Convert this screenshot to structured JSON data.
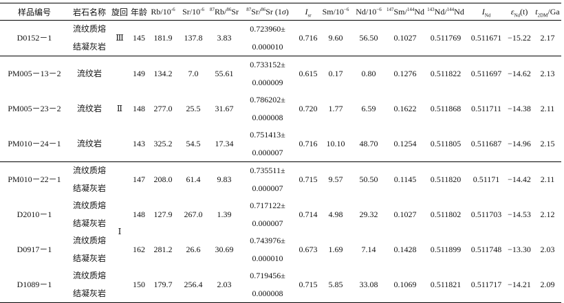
{
  "headers": {
    "sample": "样品编号",
    "rock": "岩石名称",
    "cycle": "旋回",
    "age": "年龄",
    "rb": "Rb/10",
    "rb_exp": "-6",
    "sr": "Sr/10",
    "sr_exp": "-6",
    "rbsr_a": "87",
    "rbsr_b": "Rb/",
    "rbsr_c": "86",
    "rbsr_d": "Sr",
    "srsr_a": "87",
    "srsr_b": "Sr/",
    "srsr_c": "86",
    "srsr_d": "Sr (1",
    "srsr_sigma": "σ",
    "srsr_e": ")",
    "isr_main": "I",
    "isr_sub": "sr",
    "sm": "Sm/10",
    "sm_exp": "−6",
    "nd": "Nd/10",
    "nd_exp": "−6",
    "smnd_a": "147",
    "smnd_b": "Sm/",
    "smnd_c": "144",
    "smnd_d": "Nd",
    "ndnd_a": "143",
    "ndnd_b": "Nd/",
    "ndnd_c": "144",
    "ndnd_d": "Nd",
    "ind_main": "I",
    "ind_sub": "Nd",
    "eps_main": "ε",
    "eps_sub": "Nd",
    "eps_tail": "(t)",
    "t2dm_main": "t",
    "t2dm_sub": "2DM",
    "t2dm_tail": "/Ga"
  },
  "cycles": {
    "c3": "Ⅲ",
    "c2": "Ⅱ",
    "c1": "Ⅰ"
  },
  "rows": [
    {
      "sample": "D0152－1",
      "rock1": "流纹质熔",
      "rock2": "结凝灰岩",
      "age": "145",
      "rb": "181.9",
      "sr": "137.8",
      "rbsr": "3.83",
      "srsr1": "0.723960±",
      "srsr2": "0.000010",
      "isr": "0.716",
      "sm": "9.60",
      "nd": "56.50",
      "smnd": "0.1027",
      "ndnd": "0.511769",
      "ind": "0.511671",
      "eps": "−15.22",
      "t2dm": "2.17"
    },
    {
      "sample": "PM005－13－2",
      "rock1": "流纹岩",
      "rock2": "",
      "age": "149",
      "rb": "134.2",
      "sr": "7.0",
      "rbsr": "55.61",
      "srsr1": "0.733152±",
      "srsr2": "0.000009",
      "isr": "0.615",
      "sm": "0.17",
      "nd": "0.80",
      "smnd": "0.1276",
      "ndnd": "0.511822",
      "ind": "0.511697",
      "eps": "−14.62",
      "t2dm": "2.13"
    },
    {
      "sample": "PM005－23－2",
      "rock1": "流纹岩",
      "rock2": "",
      "age": "148",
      "rb": "277.0",
      "sr": "25.5",
      "rbsr": "31.67",
      "srsr1": "0.786202±",
      "srsr2": "0.000008",
      "isr": "0.720",
      "sm": "1.77",
      "nd": "6.59",
      "smnd": "0.1622",
      "ndnd": "0.511868",
      "ind": "0.511711",
      "eps": "−14.38",
      "t2dm": "2.11"
    },
    {
      "sample": "PM010－24－1",
      "rock1": "流纹岩",
      "rock2": "",
      "age": "143",
      "rb": "325.2",
      "sr": "54.5",
      "rbsr": "17.34",
      "srsr1": "0.751413±",
      "srsr2": "0.000007",
      "isr": "0.716",
      "sm": "10.10",
      "nd": "48.70",
      "smnd": "0.1254",
      "ndnd": "0.511805",
      "ind": "0.511687",
      "eps": "−14.96",
      "t2dm": "2.15"
    },
    {
      "sample": "PM010－22－1",
      "rock1": "流纹质熔",
      "rock2": "结凝灰岩",
      "age": "147",
      "rb": "208.0",
      "sr": "61.4",
      "rbsr": "9.83",
      "srsr1": "0.735511±",
      "srsr2": "0.000007",
      "isr": "0.715",
      "sm": "9.57",
      "nd": "50.50",
      "smnd": "0.1145",
      "ndnd": "0.511820",
      "ind": "0.51171",
      "eps": "−14.42",
      "t2dm": "2.11"
    },
    {
      "sample": "D2010－1",
      "rock1": "流纹质熔",
      "rock2": "结凝灰岩",
      "age": "148",
      "rb": "127.9",
      "sr": "267.0",
      "rbsr": "1.39",
      "srsr1": "0.717122±",
      "srsr2": "0.000007",
      "isr": "0.714",
      "sm": "4.98",
      "nd": "29.32",
      "smnd": "0.1027",
      "ndnd": "0.511802",
      "ind": "0.511703",
      "eps": "−14.53",
      "t2dm": "2.12"
    },
    {
      "sample": "D0917－1",
      "rock1": "流纹质熔",
      "rock2": "结凝灰岩",
      "age": "162",
      "rb": "281.2",
      "sr": "26.6",
      "rbsr": "30.69",
      "srsr1": "0.743976±",
      "srsr2": "0.000010",
      "isr": "0.673",
      "sm": "1.69",
      "nd": "7.14",
      "smnd": "0.1428",
      "ndnd": "0.511899",
      "ind": "0.511748",
      "eps": "−13.30",
      "t2dm": "2.03"
    },
    {
      "sample": "D1089－1",
      "rock1": "流纹质熔",
      "rock2": "结凝灰岩",
      "age": "150",
      "rb": "179.7",
      "sr": "256.4",
      "rbsr": "2.03",
      "srsr1": "0.719456±",
      "srsr2": "0.000008",
      "isr": "0.715",
      "sm": "5.85",
      "nd": "33.08",
      "smnd": "0.1069",
      "ndnd": "0.511821",
      "ind": "0.511717",
      "eps": "−14.21",
      "t2dm": "2.09"
    }
  ]
}
